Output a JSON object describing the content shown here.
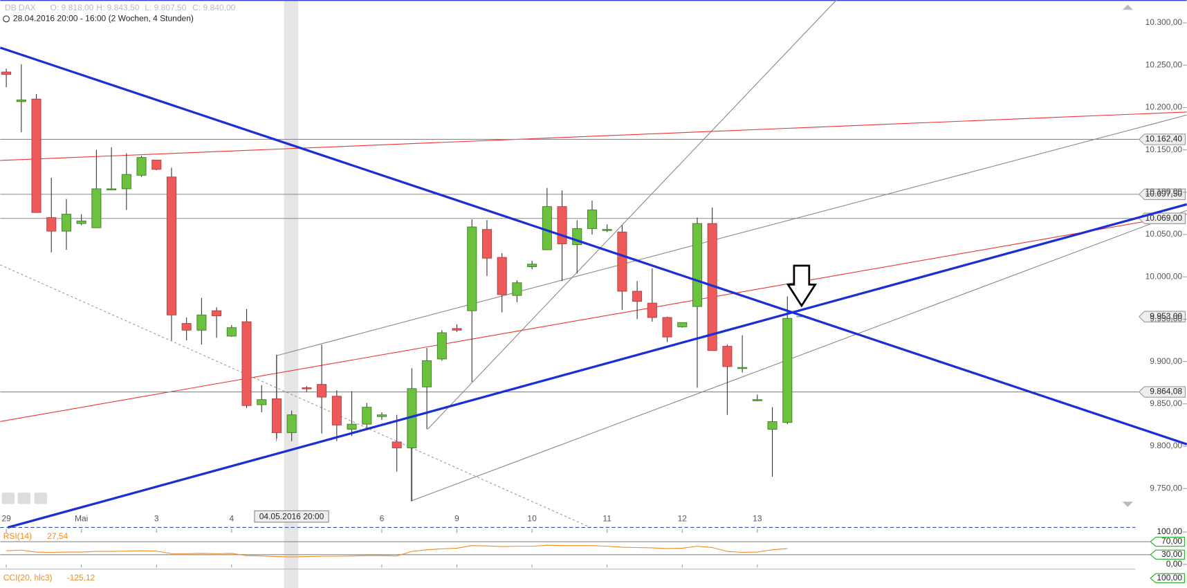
{
  "header": {
    "symbol": "DB DAX",
    "open": "O: 9.818,00",
    "high": "H: 9.843,50",
    "low": "L: 9.807,50",
    "close": "C: 9.840,00",
    "range": "28.04.2016 20:00 - 16:00 (2 Wochen, 4 Stunden)"
  },
  "chart_data": [
    {
      "type": "candlestick",
      "categories": [
        "29",
        null,
        null,
        null,
        null,
        "Mai",
        null,
        null,
        null,
        null,
        "3",
        null,
        null,
        null,
        null,
        "4",
        null,
        null,
        null,
        null,
        null,
        null,
        null,
        null,
        null,
        "6",
        null,
        null,
        null,
        null,
        "9",
        null,
        null,
        null,
        null,
        "10",
        null,
        null,
        null,
        null,
        "11",
        null,
        null,
        null,
        null,
        "12",
        null,
        null,
        null,
        null,
        "13",
        null,
        null
      ],
      "open": [
        10242,
        10207,
        10210,
        10070,
        10054,
        10063,
        10058,
        10104,
        10104,
        10120,
        10138,
        10118,
        9945,
        9937,
        9960,
        9930,
        9947,
        9849,
        9856,
        9816,
        9869,
        9873,
        9859,
        9820,
        9826,
        9835,
        9805,
        9798,
        9870,
        9903,
        9939,
        9960,
        10056,
        10023,
        9978,
        10012,
        10032,
        10083,
        10038,
        10057,
        10056,
        10053,
        9983,
        9969,
        9952,
        9941,
        9965,
        10063,
        9918,
        9893,
        9855,
        9820,
        9828
      ],
      "high": [
        10246,
        10251,
        10216,
        10117,
        10092,
        10074,
        10150,
        10153,
        10146,
        10143,
        10138,
        10129,
        9952,
        9975,
        9964,
        9943,
        9962,
        9872,
        9908,
        9842,
        9871,
        9920,
        9866,
        9865,
        9851,
        9840,
        9837,
        9892,
        9916,
        9937,
        9944,
        10068,
        10067,
        10028,
        9996,
        10019,
        10105,
        10102,
        10067,
        10090,
        10062,
        10061,
        9995,
        10010,
        9953,
        9946,
        10070,
        10082,
        9920,
        9931,
        9861,
        9846,
        9977
      ],
      "low": [
        10224,
        10171,
        10076,
        10029,
        10032,
        10061,
        10058,
        10104,
        10079,
        10118,
        10126,
        9925,
        9925,
        9920,
        9928,
        9929,
        9845,
        9840,
        9809,
        9806,
        9864,
        9815,
        9806,
        9812,
        9821,
        9831,
        9770,
        9735,
        9820,
        9901,
        9935,
        9876,
        10001,
        9958,
        9970,
        10009,
        10032,
        9995,
        10004,
        10050,
        10053,
        9961,
        9950,
        9947,
        9923,
        9940,
        9869,
        9913,
        9837,
        9887,
        9853,
        9764,
        9826
      ],
      "close": [
        10239,
        10209,
        10076,
        10054,
        10074,
        10066,
        10104,
        10104,
        10121,
        10141,
        10127,
        9955,
        9937,
        9955,
        9954,
        9940,
        9848,
        9855,
        9816,
        9837,
        9868,
        9858,
        9825,
        9826,
        9846,
        9837,
        9798,
        9868,
        9901,
        9934,
        9937,
        10059,
        10022,
        9979,
        9993,
        10015,
        10083,
        10039,
        10057,
        10079,
        10056,
        9983,
        9971,
        9952,
        9929,
        9946,
        10063,
        9913,
        9894,
        9893,
        9855,
        9829,
        9951
      ],
      "up_color": "#6cc13f",
      "down_color": "#ee5a5a",
      "ylim": [
        9704,
        10327
      ],
      "yticks": [
        {
          "value": 10300,
          "label": "10.300,00"
        },
        {
          "value": 10250,
          "label": "10.250,00"
        },
        {
          "value": 10200,
          "label": "10.200,00"
        },
        {
          "value": 10150,
          "label": "10.150,00"
        },
        {
          "value": 10100,
          "label": "10.100,00"
        },
        {
          "value": 10050,
          "label": "10.050,00"
        },
        {
          "value": 10000,
          "label": "10.000,00"
        },
        {
          "value": 9950,
          "label": "9.950,00"
        },
        {
          "value": 9900,
          "label": "9.900,00"
        },
        {
          "value": 9850,
          "label": "9.850,00"
        },
        {
          "value": 9800,
          "label": "9.800,00"
        },
        {
          "value": 9750,
          "label": "9.750,00"
        }
      ],
      "levels": [
        {
          "value": 10162.4,
          "label": "10.162,40"
        },
        {
          "value": 10097.5,
          "label": "10.097,50"
        },
        {
          "value": 10069,
          "label": "10.069,00"
        },
        {
          "value": 9864.08,
          "label": "9.864,08"
        }
      ],
      "crosshair": {
        "time": "04.05.2016 20:00",
        "price": {
          "value": 9953,
          "label": "9.953,00"
        }
      }
    },
    {
      "type": "line",
      "name": "RSI(14)",
      "last": "27,54",
      "color": "#f08a24",
      "values": [
        42,
        44,
        38,
        37,
        38,
        38,
        40,
        40,
        41,
        42,
        41,
        33,
        33,
        34,
        33,
        34,
        27,
        26,
        24,
        23,
        24,
        25,
        25,
        26,
        27,
        27,
        26,
        40,
        45,
        48,
        50,
        58,
        57,
        55,
        56,
        56,
        59,
        58,
        58,
        58,
        56,
        53,
        52,
        51,
        49,
        50,
        56,
        52,
        40,
        37,
        38,
        45,
        49
      ],
      "ylim": [
        0,
        100
      ],
      "yticks": [
        {
          "value": 100,
          "label": "100,00"
        },
        {
          "value": 70,
          "label": "70,00"
        },
        {
          "value": 30,
          "label": "30,00"
        },
        {
          "value": 0,
          "label": "0,00"
        }
      ]
    },
    {
      "type": "indicator",
      "name": "CCI(20, hlc3)",
      "last": "-125,12",
      "yticks": [
        {
          "value": 100,
          "label": "100,00"
        }
      ]
    }
  ]
}
